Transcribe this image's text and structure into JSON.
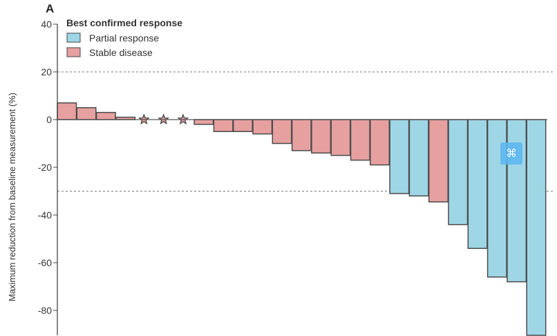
{
  "chart_data": {
    "type": "bar",
    "panel_label": "A",
    "ylabel": "Maximum reduction from baseline measurement (%)",
    "xlabel": "",
    "ylim": [
      -100,
      40
    ],
    "yticks": [
      40,
      20,
      0,
      -20,
      -40,
      -60,
      -80
    ],
    "reference_lines": [
      20,
      -30
    ],
    "legend": {
      "title": "Best confirmed response",
      "position": "top-left",
      "entries": [
        {
          "name": "Partial response",
          "color": "#9fd6e6"
        },
        {
          "name": "Stable disease",
          "color": "#e6a0a0"
        }
      ]
    },
    "bars": [
      {
        "value": 7,
        "response": "Stable disease"
      },
      {
        "value": 5,
        "response": "Stable disease"
      },
      {
        "value": 3,
        "response": "Stable disease"
      },
      {
        "value": 1,
        "response": "Stable disease"
      },
      {
        "value": 0,
        "response": "Stable disease",
        "marker": "star"
      },
      {
        "value": 0,
        "response": "Stable disease",
        "marker": "star"
      },
      {
        "value": 0,
        "response": "Stable disease",
        "marker": "star"
      },
      {
        "value": -2,
        "response": "Stable disease"
      },
      {
        "value": -5,
        "response": "Stable disease"
      },
      {
        "value": -5,
        "response": "Stable disease"
      },
      {
        "value": -6,
        "response": "Stable disease"
      },
      {
        "value": -10,
        "response": "Stable disease"
      },
      {
        "value": -13,
        "response": "Stable disease"
      },
      {
        "value": -14,
        "response": "Stable disease"
      },
      {
        "value": -15,
        "response": "Stable disease"
      },
      {
        "value": -17,
        "response": "Stable disease"
      },
      {
        "value": -19,
        "response": "Stable disease"
      },
      {
        "value": -31,
        "response": "Partial response"
      },
      {
        "value": -32,
        "response": "Partial response"
      },
      {
        "value": -34.5,
        "response": "Stable disease"
      },
      {
        "value": -44,
        "response": "Partial response"
      },
      {
        "value": -54,
        "response": "Partial response"
      },
      {
        "value": -66,
        "response": "Partial response"
      },
      {
        "value": -68,
        "response": "Partial response"
      },
      {
        "value": -100,
        "response": "Partial response"
      }
    ]
  },
  "overlay_icon": "translate-icon"
}
